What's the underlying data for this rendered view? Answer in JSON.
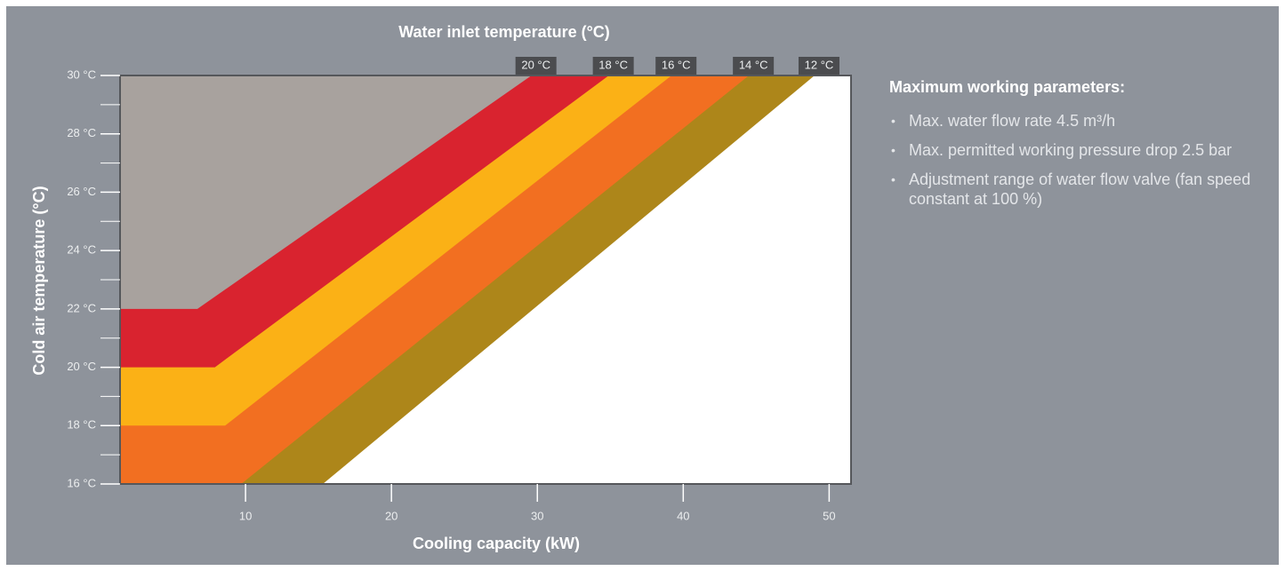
{
  "chart_data": {
    "type": "band-area",
    "title": "Water inlet temperature (°C)",
    "x_label": "Cooling capacity (kW)",
    "y_label": "Cold air temperature (°C)",
    "background_color": "#a8a29e",
    "series": [
      {
        "name": "20 °C",
        "color": "#d9232f",
        "x": [
          1.4,
          6.7,
          29.6
        ],
        "values": [
          22,
          22,
          30
        ]
      },
      {
        "name": "18 °C",
        "color": "#fbb116",
        "x": [
          1.4,
          7.9,
          34.9
        ],
        "values": [
          20,
          20,
          30
        ]
      },
      {
        "name": "16 °C",
        "color": "#f26f21",
        "x": [
          1.4,
          8.6,
          39.2
        ],
        "values": [
          18,
          18,
          30
        ]
      },
      {
        "name": "14 °C",
        "color": "#ad861a",
        "x": [
          9.7,
          44.5
        ],
        "values": [
          16,
          30
        ]
      },
      {
        "name": "12 °C",
        "color": "#ffffff",
        "x": [
          15.3,
          49.0
        ],
        "values": [
          16,
          30
        ]
      }
    ],
    "xlim": [
      1.4,
      51.5
    ],
    "ylim": [
      16,
      30
    ],
    "xticks": [
      10,
      20,
      30,
      40,
      50
    ],
    "yticks": [
      {
        "value": 16,
        "label": "16 °C"
      },
      {
        "value": 18,
        "label": "18 °C"
      },
      {
        "value": 20,
        "label": "20 °C"
      },
      {
        "value": 22,
        "label": "22 °C"
      },
      {
        "value": 24,
        "label": "24 °C"
      },
      {
        "value": 26,
        "label": "26 °C"
      },
      {
        "value": 28,
        "label": "28 °C"
      },
      {
        "value": 30,
        "label": "30 °C"
      }
    ],
    "yminor": [
      17,
      19,
      21,
      23,
      25,
      27,
      29
    ]
  },
  "notes": {
    "title": "Maximum working parameters:",
    "items": [
      "Max. water flow rate 4.5 m³/h",
      "Max. permitted working pressure drop 2.5 bar",
      "Adjustment range of water flow valve (fan speed constant at 100 %)"
    ]
  }
}
